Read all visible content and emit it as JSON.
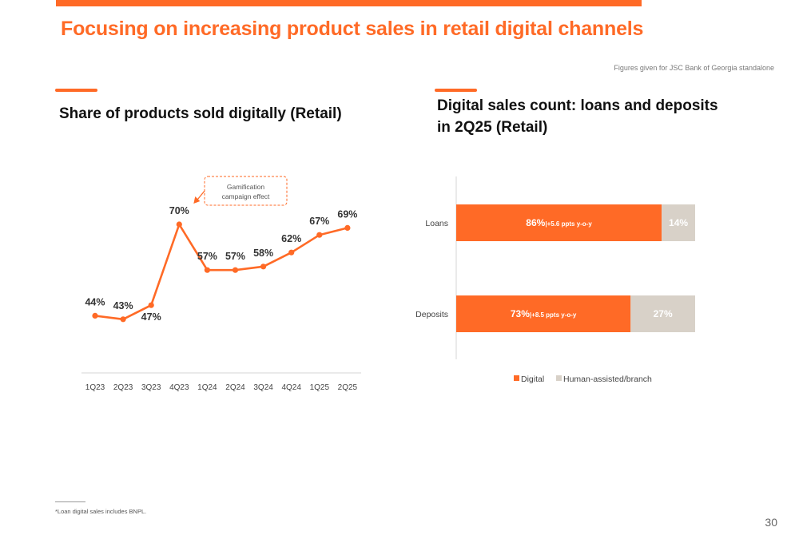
{
  "page": {
    "title": "Focusing on increasing product sales in retail digital channels",
    "source_note": "Figures given for JSC Bank of Georgia standalone",
    "footnote": "*Loan digital sales includes BNPL.",
    "page_number": "30",
    "accent_color": "#ff6a26"
  },
  "chart_data": [
    {
      "type": "line",
      "title": "Share of products sold digitally (Retail)",
      "categories": [
        "1Q23",
        "2Q23",
        "3Q23",
        "4Q23",
        "1Q24",
        "2Q24",
        "3Q24",
        "4Q24",
        "1Q25",
        "2Q25"
      ],
      "series": [
        {
          "values": [
            44,
            43,
            47,
            70,
            57,
            57,
            58,
            62,
            67,
            69
          ],
          "labels": [
            "44%",
            "43%",
            "47%",
            "70%",
            "57%",
            "57%",
            "58%",
            "62%",
            "67%",
            "69%"
          ],
          "color": "#ff6a26"
        }
      ],
      "annotation": {
        "text_lines": [
          "Gamification",
          "campaign effect"
        ],
        "points_to": "4Q23"
      },
      "grid": false
    },
    {
      "type": "bar",
      "orientation": "horizontal",
      "stacked": true,
      "title_lines": [
        "Digital sales count: loans and deposits",
        "in 2Q25 (Retail)"
      ],
      "categories": [
        "Loans",
        "Deposits"
      ],
      "series": [
        {
          "name": "Digital",
          "values": [
            86,
            73
          ],
          "labels": [
            "86%",
            "73%"
          ],
          "notes": [
            "|+5.6 ppts y-o-y",
            "|+8.5 ppts y-o-y"
          ],
          "color": "#ff6a26"
        },
        {
          "name": "Human-assisted/branch",
          "values": [
            14,
            27
          ],
          "labels": [
            "14%",
            "27%"
          ],
          "color": "#d8d1c8"
        }
      ],
      "xlim": [
        0,
        100
      ],
      "legend_position": "bottom"
    }
  ]
}
